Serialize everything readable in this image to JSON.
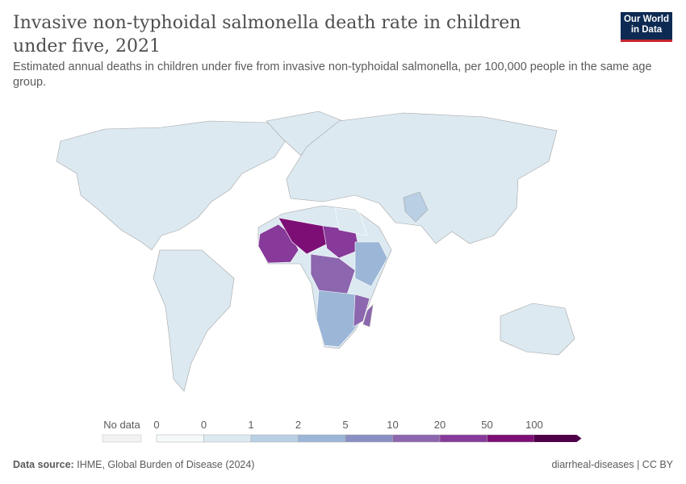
{
  "title": "Invasive non-typhoidal salmonella death rate in children under five, 2021",
  "subtitle": "Estimated annual deaths in children under five from invasive non-typhoidal salmonella, per 100,000 people in the same age group.",
  "logo": {
    "line1": "Our World",
    "line2": "in Data",
    "bg": "#0d2a53",
    "accent": "#c6262e"
  },
  "legend": {
    "no_data": "No data",
    "ticks": [
      "0",
      "0",
      "1",
      "2",
      "5",
      "10",
      "20",
      "50",
      "100"
    ],
    "colors": [
      "#f5f9f9",
      "#dce9f1",
      "#b9cfe4",
      "#9bb6d6",
      "#8a8fc3",
      "#8c66ae",
      "#873a9a",
      "#7c0e75",
      "#4f0049"
    ]
  },
  "footer": {
    "source_label": "Data source:",
    "source": "IHME, Global Burden of Disease (2024)",
    "right": "diarrheal-diseases | CC BY"
  }
}
